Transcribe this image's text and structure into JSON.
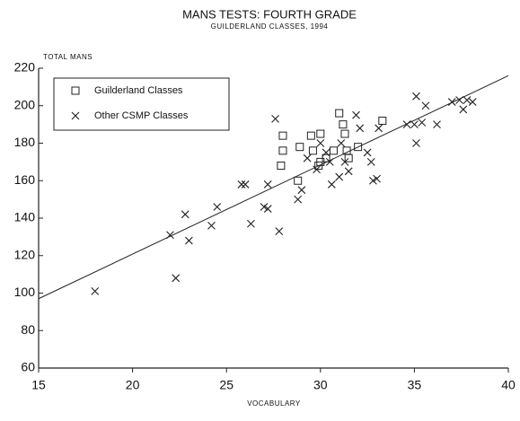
{
  "chart_data": {
    "type": "scatter",
    "title": "MANS TESTS: FOURTH GRADE",
    "subtitle": "GUILDERLAND CLASSES, 1994",
    "y_label": "TOTAL MANS",
    "x_label": "VOCABULARY",
    "xlim": [
      15,
      40
    ],
    "xticks": [
      15,
      20,
      25,
      30,
      35,
      40
    ],
    "ylim": [
      60,
      220
    ],
    "yticks": [
      60,
      80,
      100,
      120,
      140,
      160,
      180,
      200,
      220
    ],
    "legend": "upper left",
    "series": [
      {
        "name": "Guilderland Classes",
        "color": "#222222",
        "marker": "square",
        "x": [
          28.0,
          28.0,
          27.9,
          28.8,
          28.9,
          29.5,
          29.6,
          30.0,
          30.0,
          30.3,
          30.7,
          31.0,
          31.2,
          31.3,
          31.4,
          31.5,
          33.3,
          32.0,
          29.9
        ],
        "values": [
          184,
          176,
          168,
          160,
          178,
          184,
          176,
          185,
          170,
          172,
          176,
          196,
          190,
          185,
          176,
          172,
          192,
          178,
          168
        ]
      },
      {
        "name": "Other CSMP Classes",
        "color": "#222222",
        "marker": "cross",
        "x": [
          18,
          22.0,
          22.3,
          22.8,
          23.0,
          24.2,
          24.5,
          25.8,
          26.0,
          26.3,
          27.0,
          27.2,
          27.2,
          27.8,
          28.8,
          29.0,
          29.3,
          29.8,
          30.0,
          30.3,
          30.5,
          30.6,
          31.0,
          31.1,
          31.3,
          31.5,
          31.9,
          32.1,
          32.5,
          32.7,
          32.8,
          33.0,
          33.1,
          34.6,
          35.0,
          35.1,
          35.1,
          35.4,
          35.6,
          36.2,
          37.0,
          37.4,
          37.6,
          37.8,
          38.1,
          27.6
        ],
        "values": [
          101,
          131,
          108,
          142,
          128,
          136,
          146,
          158,
          158,
          137,
          146,
          145,
          158,
          133,
          150,
          155,
          172,
          166,
          180,
          175,
          170,
          158,
          162,
          180,
          170,
          165,
          195,
          188,
          175,
          170,
          160,
          161,
          188,
          190,
          190,
          180,
          205,
          191,
          200,
          190,
          202,
          203,
          198,
          203,
          202,
          193
        ]
      }
    ],
    "trend_line": {
      "x": [
        15,
        40
      ],
      "values": [
        97,
        216
      ]
    }
  }
}
